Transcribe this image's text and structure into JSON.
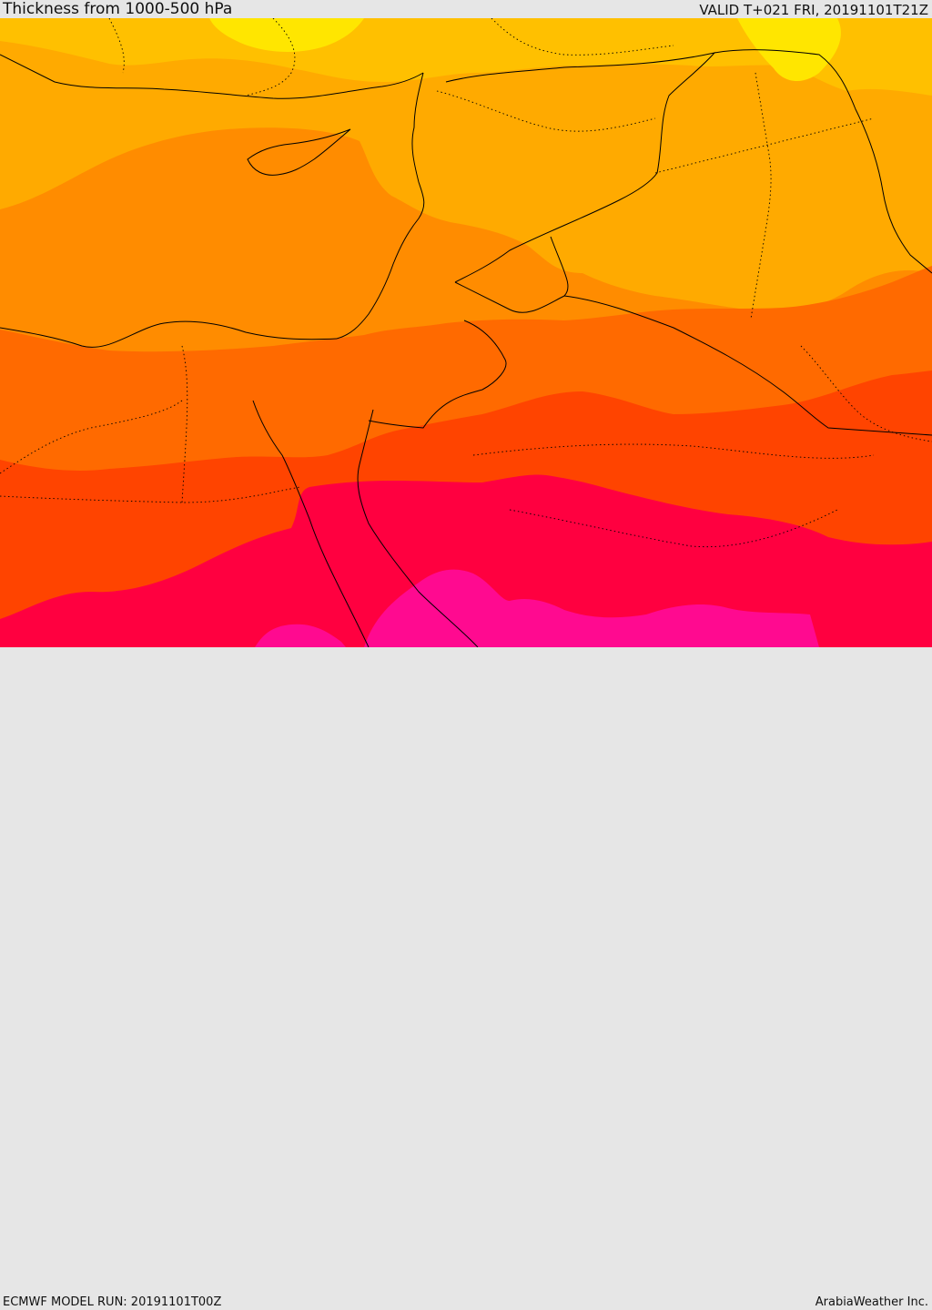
{
  "header": {
    "title": "Thickness from 1000-500 hPa",
    "valid_time": "VALID T+021 FRI, 20191101T21Z"
  },
  "footer": {
    "model_run": "ECMWF MODEL RUN: 20191101T00Z",
    "credit": "ArabiaWeather Inc."
  },
  "map": {
    "field": "1000-500 hPa thickness",
    "color_bands": [
      "#ffe600",
      "#ffc000",
      "#ffaa00",
      "#ff8c00",
      "#ff6a00",
      "#ff4400",
      "#ff0040",
      "#ff0a90"
    ],
    "boundary_color": "#000000"
  }
}
